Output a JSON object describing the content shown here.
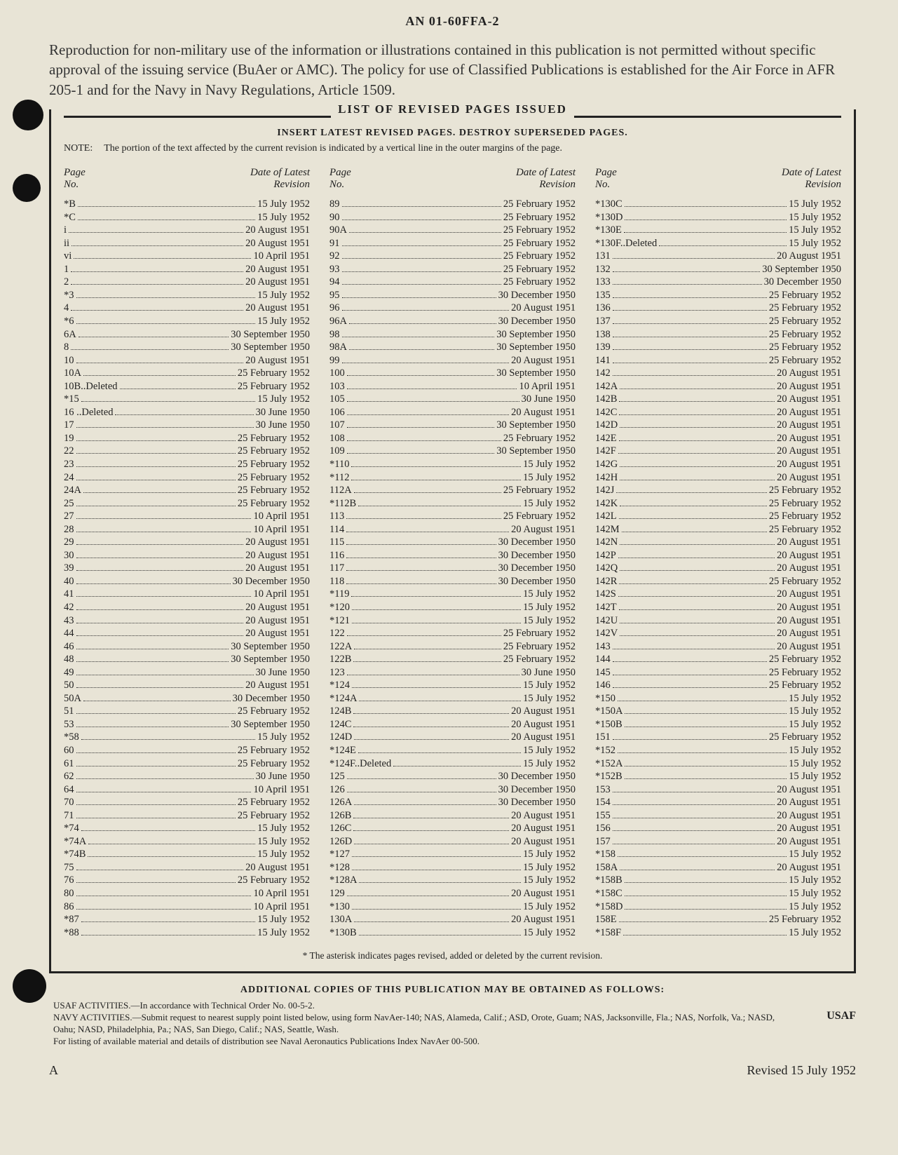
{
  "doc_number": "AN 01-60FFA-2",
  "intro_text": "Reproduction for non-military use of the information or illustrations contained in this publication is not permitted without specific approval of the issuing service (BuAer or AMC). The policy for use of Classified Publications is established for the Air Force in AFR 205-1 and for the Navy in Navy Regulations, Article 1509.",
  "frame_title": "LIST OF REVISED PAGES ISSUED",
  "insert_line": "INSERT LATEST REVISED PAGES. DESTROY SUPERSEDED PAGES.",
  "note_label": "NOTE:",
  "note_text": "The portion of the text affected by the current revision is indicated by a vertical line in the outer margins of the page.",
  "col_header": {
    "page": "Page\nNo.",
    "date": "Date of Latest\nRevision"
  },
  "asterisk_note": "* The asterisk indicates pages revised, added or deleted by the current revision.",
  "footer_title": "ADDITIONAL COPIES OF THIS PUBLICATION MAY BE OBTAINED AS FOLLOWS:",
  "footer_usaf_line": "USAF ACTIVITIES.—In accordance with Technical Order No. 00-5-2.",
  "footer_navy_line": "NAVY ACTIVITIES.—Submit request to nearest supply point listed below, using form NavAer-140; NAS, Alameda, Calif.; ASD, Orote, Guam; NAS, Jacksonville, Fla.; NAS, Norfolk, Va.; NASD, Oahu; NASD, Philadelphia, Pa.; NAS, San Diego, Calif.; NAS, Seattle, Wash.",
  "footer_listing_line": "For listing of available material and details of distribution see Naval Aeronautics Publications Index NavAer 00-500.",
  "usaf_tag": "USAF",
  "corner_letter": "A",
  "revised_line": "Revised 15 July 1952",
  "columns": [
    [
      {
        "p": "*B",
        "d": "15 July 1952"
      },
      {
        "p": "*C",
        "d": "15 July 1952"
      },
      {
        "p": "i",
        "d": "20 August 1951"
      },
      {
        "p": "ii",
        "d": "20 August 1951"
      },
      {
        "p": "vi",
        "d": "10 April 1951"
      },
      {
        "p": "1",
        "d": "20 August 1951"
      },
      {
        "p": "2",
        "d": "20 August 1951"
      },
      {
        "p": "*3",
        "d": "15 July 1952"
      },
      {
        "p": "4",
        "d": "20 August 1951"
      },
      {
        "p": "*6",
        "d": "15 July 1952"
      },
      {
        "p": "6A",
        "d": "30 September 1950"
      },
      {
        "p": "8",
        "d": "30 September 1950"
      },
      {
        "p": "10",
        "d": "20 August 1951"
      },
      {
        "p": "10A",
        "d": "25 February 1952"
      },
      {
        "p": "10B..Deleted",
        "d": "25 February 1952"
      },
      {
        "p": "*15",
        "d": "15 July 1952"
      },
      {
        "p": "16 ..Deleted",
        "d": "30 June 1950"
      },
      {
        "p": "17",
        "d": "30 June 1950"
      },
      {
        "p": "19",
        "d": "25 February 1952"
      },
      {
        "p": "22",
        "d": "25 February 1952"
      },
      {
        "p": "23",
        "d": "25 February 1952"
      },
      {
        "p": "24",
        "d": "25 February 1952"
      },
      {
        "p": "24A",
        "d": "25 February 1952"
      },
      {
        "p": "25",
        "d": "25 February 1952"
      },
      {
        "p": "27",
        "d": "10 April 1951"
      },
      {
        "p": "28",
        "d": "10 April 1951"
      },
      {
        "p": "29",
        "d": "20 August 1951"
      },
      {
        "p": "30",
        "d": "20 August 1951"
      },
      {
        "p": "39",
        "d": "20 August 1951"
      },
      {
        "p": "40",
        "d": "30 December 1950"
      },
      {
        "p": "41",
        "d": "10 April 1951"
      },
      {
        "p": "42",
        "d": "20 August 1951"
      },
      {
        "p": "43",
        "d": "20 August 1951"
      },
      {
        "p": "44",
        "d": "20 August 1951"
      },
      {
        "p": "46",
        "d": "30 September 1950"
      },
      {
        "p": "48",
        "d": "30 September 1950"
      },
      {
        "p": "49",
        "d": "30 June 1950"
      },
      {
        "p": "50",
        "d": "20 August 1951"
      },
      {
        "p": "50A",
        "d": "30 December 1950"
      },
      {
        "p": "51",
        "d": "25 February 1952"
      },
      {
        "p": "53",
        "d": "30 September 1950"
      },
      {
        "p": "*58",
        "d": "15 July 1952"
      },
      {
        "p": "60",
        "d": "25 February 1952"
      },
      {
        "p": "61",
        "d": "25 February 1952"
      },
      {
        "p": "62",
        "d": "30 June 1950"
      },
      {
        "p": "64",
        "d": "10 April 1951"
      },
      {
        "p": "70",
        "d": "25 February 1952"
      },
      {
        "p": "71",
        "d": "25 February 1952"
      },
      {
        "p": "*74",
        "d": "15 July 1952"
      },
      {
        "p": "*74A",
        "d": "15 July 1952"
      },
      {
        "p": "*74B",
        "d": "15 July 1952"
      },
      {
        "p": "75",
        "d": "20 August 1951"
      },
      {
        "p": "76",
        "d": "25 February 1952"
      },
      {
        "p": "80",
        "d": "10 April 1951"
      },
      {
        "p": "86",
        "d": "10 April 1951"
      },
      {
        "p": "*87",
        "d": "15 July 1952"
      },
      {
        "p": "*88",
        "d": "15 July 1952"
      }
    ],
    [
      {
        "p": "89",
        "d": "25 February 1952"
      },
      {
        "p": "90",
        "d": "25 February 1952"
      },
      {
        "p": "90A",
        "d": "25 February 1952"
      },
      {
        "p": "91",
        "d": "25 February 1952"
      },
      {
        "p": "92",
        "d": "25 February 1952"
      },
      {
        "p": "93",
        "d": "25 February 1952"
      },
      {
        "p": "94",
        "d": "25 February 1952"
      },
      {
        "p": "95",
        "d": "30 December 1950"
      },
      {
        "p": "96",
        "d": "20 August 1951"
      },
      {
        "p": "96A",
        "d": "30 December 1950"
      },
      {
        "p": "98",
        "d": "30 September 1950"
      },
      {
        "p": "98A",
        "d": "30 September 1950"
      },
      {
        "p": "99",
        "d": "20 August 1951"
      },
      {
        "p": "100",
        "d": "30 September 1950"
      },
      {
        "p": "103",
        "d": "10 April 1951"
      },
      {
        "p": "105",
        "d": "30 June 1950"
      },
      {
        "p": "106",
        "d": "20 August 1951"
      },
      {
        "p": "107",
        "d": "30 September 1950"
      },
      {
        "p": "108",
        "d": "25 February 1952"
      },
      {
        "p": "109",
        "d": "30 September 1950"
      },
      {
        "p": "*110",
        "d": "15 July 1952"
      },
      {
        "p": "*112",
        "d": "15 July 1952"
      },
      {
        "p": "112A",
        "d": "25 February 1952"
      },
      {
        "p": "*112B",
        "d": "15 July 1952"
      },
      {
        "p": "113",
        "d": "25 February 1952"
      },
      {
        "p": "114",
        "d": "20 August 1951"
      },
      {
        "p": "115",
        "d": "30 December 1950"
      },
      {
        "p": "116",
        "d": "30 December 1950"
      },
      {
        "p": "117",
        "d": "30 December 1950"
      },
      {
        "p": "118",
        "d": "30 December 1950"
      },
      {
        "p": "*119",
        "d": "15 July 1952"
      },
      {
        "p": "*120",
        "d": "15 July 1952"
      },
      {
        "p": "*121",
        "d": "15 July 1952"
      },
      {
        "p": "122",
        "d": "25 February 1952"
      },
      {
        "p": "122A",
        "d": "25 February 1952"
      },
      {
        "p": "122B",
        "d": "25 February 1952"
      },
      {
        "p": "123",
        "d": "30 June 1950"
      },
      {
        "p": "*124",
        "d": "15 July 1952"
      },
      {
        "p": "*124A",
        "d": "15 July 1952"
      },
      {
        "p": "124B",
        "d": "20 August 1951"
      },
      {
        "p": "124C",
        "d": "20 August 1951"
      },
      {
        "p": "124D",
        "d": "20 August 1951"
      },
      {
        "p": "*124E",
        "d": "15 July 1952"
      },
      {
        "p": "*124F..Deleted",
        "d": "15 July 1952"
      },
      {
        "p": "125",
        "d": "30 December 1950"
      },
      {
        "p": "126",
        "d": "30 December 1950"
      },
      {
        "p": "126A",
        "d": "30 December 1950"
      },
      {
        "p": "126B",
        "d": "20 August 1951"
      },
      {
        "p": "126C",
        "d": "20 August 1951"
      },
      {
        "p": "126D",
        "d": "20 August 1951"
      },
      {
        "p": "*127",
        "d": "15 July 1952"
      },
      {
        "p": "*128",
        "d": "15 July 1952"
      },
      {
        "p": "*128A",
        "d": "15 July 1952"
      },
      {
        "p": "129",
        "d": "20 August 1951"
      },
      {
        "p": "*130",
        "d": "15 July 1952"
      },
      {
        "p": "130A",
        "d": "20 August 1951"
      },
      {
        "p": "*130B",
        "d": "15 July 1952"
      }
    ],
    [
      {
        "p": "*130C",
        "d": "15 July 1952"
      },
      {
        "p": "*130D",
        "d": "15 July 1952"
      },
      {
        "p": "*130E",
        "d": "15 July 1952"
      },
      {
        "p": "*130F..Deleted",
        "d": "15 July 1952"
      },
      {
        "p": "131",
        "d": "20 August 1951"
      },
      {
        "p": "132",
        "d": "30 September 1950"
      },
      {
        "p": "133",
        "d": "30 December 1950"
      },
      {
        "p": "135",
        "d": "25 February 1952"
      },
      {
        "p": "136",
        "d": "25 February 1952"
      },
      {
        "p": "137",
        "d": "25 February 1952"
      },
      {
        "p": "138",
        "d": "25 February 1952"
      },
      {
        "p": "139",
        "d": "25 February 1952"
      },
      {
        "p": "141",
        "d": "25 February 1952"
      },
      {
        "p": "142",
        "d": "20 August 1951"
      },
      {
        "p": "142A",
        "d": "20 August 1951"
      },
      {
        "p": "142B",
        "d": "20 August 1951"
      },
      {
        "p": "142C",
        "d": "20 August 1951"
      },
      {
        "p": "142D",
        "d": "20 August 1951"
      },
      {
        "p": "142E",
        "d": "20 August 1951"
      },
      {
        "p": "142F",
        "d": "20 August 1951"
      },
      {
        "p": "142G",
        "d": "20 August 1951"
      },
      {
        "p": "142H",
        "d": "20 August 1951"
      },
      {
        "p": "142J",
        "d": "25 February 1952"
      },
      {
        "p": "142K",
        "d": "25 February 1952"
      },
      {
        "p": "142L",
        "d": "25 February 1952"
      },
      {
        "p": "142M",
        "d": "25 February 1952"
      },
      {
        "p": "142N",
        "d": "20 August 1951"
      },
      {
        "p": "142P",
        "d": "20 August 1951"
      },
      {
        "p": "142Q",
        "d": "20 August 1951"
      },
      {
        "p": "142R",
        "d": "25 February 1952"
      },
      {
        "p": "142S",
        "d": "20 August 1951"
      },
      {
        "p": "142T",
        "d": "20 August 1951"
      },
      {
        "p": "142U",
        "d": "20 August 1951"
      },
      {
        "p": "142V",
        "d": "20 August 1951"
      },
      {
        "p": "143",
        "d": "20 August 1951"
      },
      {
        "p": "144",
        "d": "25 February 1952"
      },
      {
        "p": "145",
        "d": "25 February 1952"
      },
      {
        "p": "146",
        "d": "25 February 1952"
      },
      {
        "p": "*150",
        "d": "15 July 1952"
      },
      {
        "p": "*150A",
        "d": "15 July 1952"
      },
      {
        "p": "*150B",
        "d": "15 July 1952"
      },
      {
        "p": "151",
        "d": "25 February 1952"
      },
      {
        "p": "*152",
        "d": "15 July 1952"
      },
      {
        "p": "*152A",
        "d": "15 July 1952"
      },
      {
        "p": "*152B",
        "d": "15 July 1952"
      },
      {
        "p": "153",
        "d": "20 August 1951"
      },
      {
        "p": "154",
        "d": "20 August 1951"
      },
      {
        "p": "155",
        "d": "20 August 1951"
      },
      {
        "p": "156",
        "d": "20 August 1951"
      },
      {
        "p": "157",
        "d": "20 August 1951"
      },
      {
        "p": "*158",
        "d": "15 July 1952"
      },
      {
        "p": "158A",
        "d": "20 August 1951"
      },
      {
        "p": "*158B",
        "d": "15 July 1952"
      },
      {
        "p": "*158C",
        "d": "15 July 1952"
      },
      {
        "p": "*158D",
        "d": "15 July 1952"
      },
      {
        "p": "158E",
        "d": "25 February 1952"
      },
      {
        "p": "*158F",
        "d": "15 July 1952"
      }
    ]
  ]
}
